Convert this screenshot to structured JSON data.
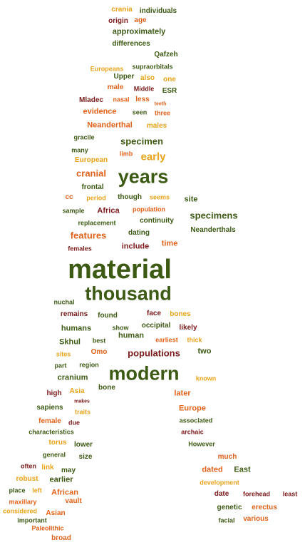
{
  "palette": {
    "olive": "#3d5a14",
    "maroon": "#7a1a1a",
    "orange": "#e0621a",
    "gold": "#e8a31a",
    "background": "#ffffff"
  },
  "words": [
    {
      "text": "crania",
      "color": "gold",
      "weight": 2
    },
    {
      "text": "individuals",
      "color": "olive",
      "weight": 2
    },
    {
      "text": "origin",
      "color": "maroon",
      "weight": 2
    },
    {
      "text": "age",
      "color": "orange",
      "weight": 2
    },
    {
      "text": "approximately",
      "color": "olive",
      "weight": 3
    },
    {
      "text": "differences",
      "color": "olive",
      "weight": 2
    },
    {
      "text": "Qafzeh",
      "color": "olive",
      "weight": 2
    },
    {
      "text": "Europeans",
      "color": "gold",
      "weight": 1
    },
    {
      "text": "supraorbitals",
      "color": "olive",
      "weight": 1
    },
    {
      "text": "Upper",
      "color": "olive",
      "weight": 2
    },
    {
      "text": "also",
      "color": "gold",
      "weight": 2
    },
    {
      "text": "one",
      "color": "gold",
      "weight": 2
    },
    {
      "text": "male",
      "color": "orange",
      "weight": 2
    },
    {
      "text": "Middle",
      "color": "maroon",
      "weight": 1
    },
    {
      "text": "ESR",
      "color": "olive",
      "weight": 2
    },
    {
      "text": "Mladec",
      "color": "maroon",
      "weight": 2
    },
    {
      "text": "nasal",
      "color": "orange",
      "weight": 1
    },
    {
      "text": "less",
      "color": "orange",
      "weight": 2
    },
    {
      "text": "teeth",
      "color": "orange",
      "weight": 0
    },
    {
      "text": "evidence",
      "color": "orange",
      "weight": 3
    },
    {
      "text": "seen",
      "color": "olive",
      "weight": 1
    },
    {
      "text": "three",
      "color": "orange",
      "weight": 1
    },
    {
      "text": "Neanderthal",
      "color": "orange",
      "weight": 3
    },
    {
      "text": "males",
      "color": "gold",
      "weight": 2
    },
    {
      "text": "gracile",
      "color": "olive",
      "weight": 1
    },
    {
      "text": "specimen",
      "color": "olive",
      "weight": 4
    },
    {
      "text": "many",
      "color": "olive",
      "weight": 1
    },
    {
      "text": "limb",
      "color": "orange",
      "weight": 1
    },
    {
      "text": "early",
      "color": "gold",
      "weight": 5
    },
    {
      "text": "European",
      "color": "gold",
      "weight": 2
    },
    {
      "text": "cranial",
      "color": "orange",
      "weight": 4
    },
    {
      "text": "years",
      "color": "olive",
      "weight": 8
    },
    {
      "text": "frontal",
      "color": "olive",
      "weight": 2
    },
    {
      "text": "site",
      "color": "olive",
      "weight": 3
    },
    {
      "text": "cc",
      "color": "orange",
      "weight": 2
    },
    {
      "text": "period",
      "color": "gold",
      "weight": 1
    },
    {
      "text": "though",
      "color": "olive",
      "weight": 2
    },
    {
      "text": "seems",
      "color": "gold",
      "weight": 1
    },
    {
      "text": "sample",
      "color": "olive",
      "weight": 1
    },
    {
      "text": "Africa",
      "color": "maroon",
      "weight": 3
    },
    {
      "text": "population",
      "color": "orange",
      "weight": 1
    },
    {
      "text": "specimens",
      "color": "olive",
      "weight": 4
    },
    {
      "text": "replacement",
      "color": "olive",
      "weight": 1
    },
    {
      "text": "continuity",
      "color": "olive",
      "weight": 2
    },
    {
      "text": "features",
      "color": "orange",
      "weight": 4
    },
    {
      "text": "dating",
      "color": "olive",
      "weight": 2
    },
    {
      "text": "Neanderthals",
      "color": "olive",
      "weight": 2
    },
    {
      "text": "include",
      "color": "maroon",
      "weight": 3
    },
    {
      "text": "time",
      "color": "orange",
      "weight": 3
    },
    {
      "text": "females",
      "color": "maroon",
      "weight": 1
    },
    {
      "text": "material",
      "color": "olive",
      "weight": 10
    },
    {
      "text": "thousand",
      "color": "olive",
      "weight": 8
    },
    {
      "text": "nuchal",
      "color": "olive",
      "weight": 1
    },
    {
      "text": "remains",
      "color": "maroon",
      "weight": 2
    },
    {
      "text": "found",
      "color": "olive",
      "weight": 2
    },
    {
      "text": "face",
      "color": "maroon",
      "weight": 2
    },
    {
      "text": "bones",
      "color": "gold",
      "weight": 2
    },
    {
      "text": "humans",
      "color": "olive",
      "weight": 3
    },
    {
      "text": "show",
      "color": "olive",
      "weight": 1
    },
    {
      "text": "occipital",
      "color": "olive",
      "weight": 2
    },
    {
      "text": "likely",
      "color": "maroon",
      "weight": 2
    },
    {
      "text": "Skhul",
      "color": "olive",
      "weight": 3
    },
    {
      "text": "best",
      "color": "olive",
      "weight": 1
    },
    {
      "text": "human",
      "color": "olive",
      "weight": 3
    },
    {
      "text": "earliest",
      "color": "orange",
      "weight": 1
    },
    {
      "text": "thick",
      "color": "gold",
      "weight": 1
    },
    {
      "text": "sites",
      "color": "gold",
      "weight": 1
    },
    {
      "text": "Omo",
      "color": "orange",
      "weight": 2
    },
    {
      "text": "populations",
      "color": "maroon",
      "weight": 4
    },
    {
      "text": "two",
      "color": "olive",
      "weight": 3
    },
    {
      "text": "part",
      "color": "olive",
      "weight": 1
    },
    {
      "text": "region",
      "color": "olive",
      "weight": 1
    },
    {
      "text": "modern",
      "color": "olive",
      "weight": 8
    },
    {
      "text": "cranium",
      "color": "olive",
      "weight": 3
    },
    {
      "text": "known",
      "color": "gold",
      "weight": 1
    },
    {
      "text": "Asia",
      "color": "gold",
      "weight": 2
    },
    {
      "text": "bone",
      "color": "olive",
      "weight": 2
    },
    {
      "text": "high",
      "color": "maroon",
      "weight": 2
    },
    {
      "text": "later",
      "color": "orange",
      "weight": 3
    },
    {
      "text": "makes",
      "color": "maroon",
      "weight": 0
    },
    {
      "text": "sapiens",
      "color": "olive",
      "weight": 2
    },
    {
      "text": "traits",
      "color": "gold",
      "weight": 1
    },
    {
      "text": "Europe",
      "color": "orange",
      "weight": 3
    },
    {
      "text": "female",
      "color": "orange",
      "weight": 2
    },
    {
      "text": "due",
      "color": "maroon",
      "weight": 1
    },
    {
      "text": "associated",
      "color": "olive",
      "weight": 1
    },
    {
      "text": "characteristics",
      "color": "olive",
      "weight": 1
    },
    {
      "text": "archaic",
      "color": "maroon",
      "weight": 1
    },
    {
      "text": "torus",
      "color": "gold",
      "weight": 2
    },
    {
      "text": "lower",
      "color": "olive",
      "weight": 2
    },
    {
      "text": "However",
      "color": "olive",
      "weight": 1
    },
    {
      "text": "general",
      "color": "olive",
      "weight": 1
    },
    {
      "text": "size",
      "color": "olive",
      "weight": 2
    },
    {
      "text": "much",
      "color": "orange",
      "weight": 2
    },
    {
      "text": "often",
      "color": "maroon",
      "weight": 1
    },
    {
      "text": "link",
      "color": "gold",
      "weight": 2
    },
    {
      "text": "may",
      "color": "olive",
      "weight": 2
    },
    {
      "text": "dated",
      "color": "orange",
      "weight": 3
    },
    {
      "text": "East",
      "color": "olive",
      "weight": 3
    },
    {
      "text": "robust",
      "color": "gold",
      "weight": 2
    },
    {
      "text": "earlier",
      "color": "olive",
      "weight": 3
    },
    {
      "text": "development",
      "color": "gold",
      "weight": 1
    },
    {
      "text": "place",
      "color": "olive",
      "weight": 1
    },
    {
      "text": "left",
      "color": "gold",
      "weight": 1
    },
    {
      "text": "African",
      "color": "orange",
      "weight": 3
    },
    {
      "text": "date",
      "color": "maroon",
      "weight": 2
    },
    {
      "text": "forehead",
      "color": "maroon",
      "weight": 1
    },
    {
      "text": "least",
      "color": "maroon",
      "weight": 1
    },
    {
      "text": "maxillary",
      "color": "orange",
      "weight": 1
    },
    {
      "text": "vault",
      "color": "orange",
      "weight": 2
    },
    {
      "text": "genetic",
      "color": "olive",
      "weight": 2
    },
    {
      "text": "erectus",
      "color": "orange",
      "weight": 2
    },
    {
      "text": "considered",
      "color": "gold",
      "weight": 1
    },
    {
      "text": "Asian",
      "color": "orange",
      "weight": 2
    },
    {
      "text": "important",
      "color": "olive",
      "weight": 1
    },
    {
      "text": "facial",
      "color": "olive",
      "weight": 1
    },
    {
      "text": "various",
      "color": "orange",
      "weight": 2
    },
    {
      "text": "Paleolithic",
      "color": "orange",
      "weight": 1
    },
    {
      "text": "broad",
      "color": "orange",
      "weight": 2
    }
  ]
}
